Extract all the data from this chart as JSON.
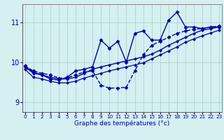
{
  "xlabel": "Graphe des températures (°c)",
  "background_color": "#d4f0f0",
  "line_color": "#0000bb",
  "grid_color": "#aacccc",
  "x_ticks": [
    0,
    1,
    2,
    3,
    4,
    5,
    6,
    7,
    8,
    9,
    10,
    11,
    12,
    13,
    14,
    15,
    16,
    17,
    18,
    19,
    20,
    21,
    22,
    23
  ],
  "y_ticks": [
    9,
    10,
    11
  ],
  "ylim": [
    8.75,
    11.45
  ],
  "xlim": [
    -0.3,
    23.3
  ],
  "series": [
    {
      "x": [
        0,
        1,
        2,
        3,
        4,
        5,
        6,
        7,
        8,
        9,
        10,
        11,
        12,
        13,
        14,
        15,
        16,
        17,
        18,
        19,
        20,
        21,
        22,
        23
      ],
      "y": [
        9.9,
        9.78,
        9.72,
        9.68,
        9.6,
        9.6,
        9.68,
        9.75,
        9.78,
        9.42,
        9.35,
        9.35,
        9.37,
        9.78,
        10.18,
        10.42,
        10.52,
        10.62,
        10.72,
        10.78,
        10.82,
        10.84,
        10.88,
        10.9
      ],
      "marker": "D",
      "markersize": 2.5,
      "linewidth": 1.0,
      "linestyle": "--"
    },
    {
      "x": [
        0,
        1,
        2,
        3,
        4,
        5,
        6,
        7,
        8,
        9,
        10,
        11,
        12,
        13,
        14,
        15,
        16,
        17,
        18,
        19,
        20,
        21,
        22,
        23
      ],
      "y": [
        9.88,
        9.72,
        9.68,
        9.62,
        9.58,
        9.58,
        9.62,
        9.72,
        9.82,
        9.88,
        9.93,
        9.98,
        10.03,
        10.08,
        10.13,
        10.2,
        10.3,
        10.42,
        10.52,
        10.62,
        10.72,
        10.8,
        10.84,
        10.88
      ],
      "marker": "D",
      "markersize": 2.0,
      "linewidth": 1.0,
      "linestyle": "-"
    },
    {
      "x": [
        0,
        1,
        2,
        3,
        4,
        5,
        6,
        7,
        8,
        9,
        10,
        11,
        12,
        13,
        14,
        15,
        16,
        17,
        18,
        19,
        20,
        21,
        22,
        23
      ],
      "y": [
        9.82,
        9.62,
        9.58,
        9.52,
        9.48,
        9.48,
        9.52,
        9.6,
        9.66,
        9.72,
        9.78,
        9.83,
        9.88,
        9.93,
        9.98,
        10.08,
        10.18,
        10.28,
        10.38,
        10.5,
        10.58,
        10.66,
        10.73,
        10.8
      ],
      "marker": "D",
      "markersize": 2.0,
      "linewidth": 0.9,
      "linestyle": "-"
    },
    {
      "x": [
        0,
        1,
        2,
        3,
        4,
        5,
        6,
        7,
        8,
        9,
        10,
        11,
        12,
        13,
        14,
        15,
        16,
        17,
        18,
        19,
        20,
        21,
        22,
        23
      ],
      "y": [
        9.9,
        9.75,
        9.68,
        9.58,
        9.55,
        9.62,
        9.78,
        9.82,
        9.88,
        10.55,
        10.35,
        10.52,
        10.0,
        10.72,
        10.78,
        10.55,
        10.55,
        11.05,
        11.25,
        10.88,
        10.88,
        10.84,
        10.88,
        10.88
      ],
      "marker": "D",
      "markersize": 2.5,
      "linewidth": 1.0,
      "linestyle": "-"
    }
  ]
}
